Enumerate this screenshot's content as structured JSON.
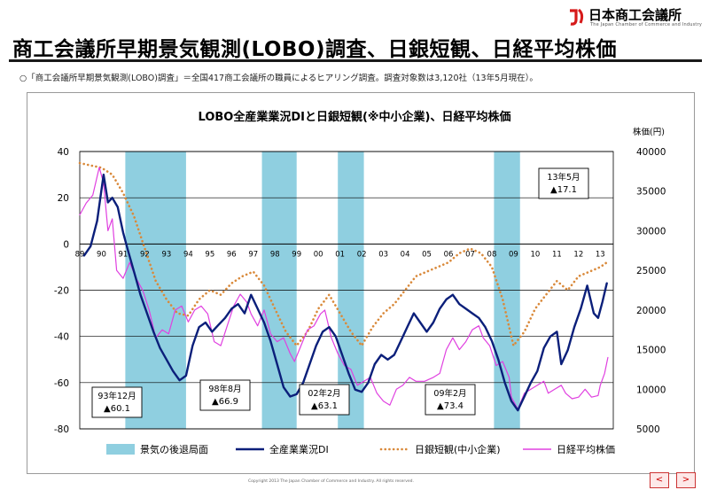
{
  "org": {
    "name": "日本商工会議所",
    "subtitle": "The Japan Chamber of Commerce and Industry"
  },
  "page_title": "商工会議所早期景気観測(LOBO)調査、日銀短観、日経平均株価",
  "note": "○「商工会議所早期景気観測(LOBO)調査」＝全国417商工会議所の職員によるヒアリング調査。調査対象数は3,120社（13年5月現在）。",
  "copyright": "Copyright 2013 The Japan Chamber of Commerce and Industry. All rights reserved.",
  "nav": {
    "prev": "<",
    "next": ">"
  },
  "colors": {
    "recession": "#8fcfe0",
    "lobo": "#0b1f7a",
    "tankan": "#d9893a",
    "nikkei": "#e040e0"
  },
  "chart_data": {
    "type": "line",
    "title": "LOBO全産業業況DIと日銀短観(※中小企業)、日経平均株価",
    "xlabel": "",
    "ylabel": "",
    "y2label": "株価(円)",
    "x_ticks": [
      "89",
      "90",
      "91",
      "92",
      "93",
      "94",
      "95",
      "96",
      "97",
      "98",
      "99",
      "00",
      "01",
      "02",
      "03",
      "04",
      "05",
      "06",
      "07",
      "08",
      "09",
      "10",
      "11",
      "12",
      "13"
    ],
    "ylim": [
      -80,
      40
    ],
    "y_ticks": [
      40,
      20,
      0,
      -20,
      -40,
      -60,
      -80
    ],
    "y2lim": [
      5000,
      40000
    ],
    "y2_ticks": [
      40000,
      35000,
      30000,
      25000,
      20000,
      15000,
      10000,
      5000
    ],
    "recessions": [
      [
        1991.1,
        1993.9
      ],
      [
        1997.4,
        1999.0
      ],
      [
        2000.9,
        2002.1
      ],
      [
        2008.1,
        2009.3
      ]
    ],
    "series": [
      {
        "name": "全産業業況DI",
        "axis": "left",
        "points": [
          [
            1989.2,
            -5
          ],
          [
            1989.5,
            -1
          ],
          [
            1989.8,
            10
          ],
          [
            1990.1,
            30
          ],
          [
            1990.3,
            18
          ],
          [
            1990.5,
            20
          ],
          [
            1990.75,
            16
          ],
          [
            1991.0,
            5
          ],
          [
            1991.2,
            -2
          ],
          [
            1991.5,
            -12
          ],
          [
            1991.8,
            -22
          ],
          [
            1992.1,
            -30
          ],
          [
            1992.4,
            -38
          ],
          [
            1992.7,
            -45
          ],
          [
            1993.0,
            -50
          ],
          [
            1993.3,
            -55
          ],
          [
            1993.6,
            -59
          ],
          [
            1993.9,
            -57
          ],
          [
            1994.2,
            -44
          ],
          [
            1994.5,
            -36
          ],
          [
            1994.8,
            -34
          ],
          [
            1995.1,
            -38
          ],
          [
            1995.4,
            -35
          ],
          [
            1995.7,
            -32
          ],
          [
            1996.0,
            -28
          ],
          [
            1996.3,
            -26
          ],
          [
            1996.6,
            -30
          ],
          [
            1996.9,
            -22
          ],
          [
            1997.2,
            -28
          ],
          [
            1997.5,
            -34
          ],
          [
            1997.8,
            -42
          ],
          [
            1998.1,
            -52
          ],
          [
            1998.4,
            -62
          ],
          [
            1998.7,
            -66
          ],
          [
            1999.0,
            -65
          ],
          [
            1999.3,
            -60
          ],
          [
            1999.6,
            -52
          ],
          [
            1999.9,
            -44
          ],
          [
            2000.2,
            -38
          ],
          [
            2000.5,
            -36
          ],
          [
            2000.8,
            -40
          ],
          [
            2001.1,
            -48
          ],
          [
            2001.4,
            -56
          ],
          [
            2001.7,
            -63
          ],
          [
            2002.0,
            -64
          ],
          [
            2002.3,
            -60
          ],
          [
            2002.6,
            -52
          ],
          [
            2002.9,
            -48
          ],
          [
            2003.2,
            -50
          ],
          [
            2003.5,
            -48
          ],
          [
            2003.8,
            -42
          ],
          [
            2004.1,
            -36
          ],
          [
            2004.4,
            -30
          ],
          [
            2004.7,
            -34
          ],
          [
            2005.0,
            -38
          ],
          [
            2005.3,
            -34
          ],
          [
            2005.6,
            -28
          ],
          [
            2005.9,
            -24
          ],
          [
            2006.2,
            -22
          ],
          [
            2006.5,
            -26
          ],
          [
            2006.8,
            -28
          ],
          [
            2007.1,
            -30
          ],
          [
            2007.4,
            -32
          ],
          [
            2007.7,
            -36
          ],
          [
            2008.0,
            -42
          ],
          [
            2008.3,
            -50
          ],
          [
            2008.6,
            -60
          ],
          [
            2008.9,
            -68
          ],
          [
            2009.2,
            -72
          ],
          [
            2009.5,
            -66
          ],
          [
            2009.8,
            -60
          ],
          [
            2010.1,
            -55
          ],
          [
            2010.4,
            -45
          ],
          [
            2010.7,
            -40
          ],
          [
            2011.0,
            -38
          ],
          [
            2011.2,
            -52
          ],
          [
            2011.5,
            -46
          ],
          [
            2011.8,
            -36
          ],
          [
            2012.1,
            -28
          ],
          [
            2012.4,
            -18
          ],
          [
            2012.7,
            -30
          ],
          [
            2012.9,
            -32
          ],
          [
            2013.1,
            -25
          ],
          [
            2013.3,
            -17
          ]
        ]
      },
      {
        "name": "日銀短観(中小企業)",
        "axis": "left",
        "points": [
          [
            1989.0,
            35
          ],
          [
            1989.5,
            34
          ],
          [
            1990.0,
            33
          ],
          [
            1990.5,
            30
          ],
          [
            1991.0,
            22
          ],
          [
            1991.5,
            12
          ],
          [
            1992.0,
            -2
          ],
          [
            1992.5,
            -16
          ],
          [
            1993.0,
            -24
          ],
          [
            1993.5,
            -30
          ],
          [
            1994.0,
            -31
          ],
          [
            1994.5,
            -24
          ],
          [
            1995.0,
            -20
          ],
          [
            1995.5,
            -22
          ],
          [
            1996.0,
            -17
          ],
          [
            1996.5,
            -14
          ],
          [
            1997.0,
            -12
          ],
          [
            1997.5,
            -18
          ],
          [
            1998.0,
            -28
          ],
          [
            1998.5,
            -38
          ],
          [
            1999.0,
            -44
          ],
          [
            1999.5,
            -38
          ],
          [
            2000.0,
            -28
          ],
          [
            2000.5,
            -22
          ],
          [
            2001.0,
            -30
          ],
          [
            2001.5,
            -38
          ],
          [
            2002.0,
            -44
          ],
          [
            2002.5,
            -36
          ],
          [
            2003.0,
            -30
          ],
          [
            2003.5,
            -26
          ],
          [
            2004.0,
            -20
          ],
          [
            2004.5,
            -14
          ],
          [
            2005.0,
            -12
          ],
          [
            2005.5,
            -10
          ],
          [
            2006.0,
            -8
          ],
          [
            2006.5,
            -4
          ],
          [
            2007.0,
            -2
          ],
          [
            2007.5,
            -4
          ],
          [
            2008.0,
            -10
          ],
          [
            2008.5,
            -24
          ],
          [
            2009.0,
            -44
          ],
          [
            2009.5,
            -38
          ],
          [
            2010.0,
            -28
          ],
          [
            2010.5,
            -22
          ],
          [
            2011.0,
            -16
          ],
          [
            2011.5,
            -20
          ],
          [
            2012.0,
            -14
          ],
          [
            2012.5,
            -12
          ],
          [
            2013.0,
            -10
          ],
          [
            2013.3,
            -8
          ]
        ]
      },
      {
        "name": "日経平均株価",
        "axis": "right",
        "points": [
          [
            1989.0,
            32000
          ],
          [
            1989.3,
            33500
          ],
          [
            1989.6,
            34500
          ],
          [
            1989.9,
            38000
          ],
          [
            1990.1,
            36000
          ],
          [
            1990.3,
            30000
          ],
          [
            1990.5,
            31500
          ],
          [
            1990.7,
            25000
          ],
          [
            1991.0,
            24000
          ],
          [
            1991.3,
            26000
          ],
          [
            1991.6,
            24000
          ],
          [
            1991.9,
            22500
          ],
          [
            1992.2,
            20000
          ],
          [
            1992.5,
            16500
          ],
          [
            1992.8,
            17500
          ],
          [
            1993.1,
            17000
          ],
          [
            1993.4,
            20000
          ],
          [
            1993.7,
            20500
          ],
          [
            1994.0,
            18500
          ],
          [
            1994.3,
            20000
          ],
          [
            1994.6,
            20500
          ],
          [
            1994.9,
            19500
          ],
          [
            1995.2,
            16000
          ],
          [
            1995.5,
            15500
          ],
          [
            1995.8,
            18000
          ],
          [
            1996.1,
            20500
          ],
          [
            1996.4,
            22000
          ],
          [
            1996.7,
            21000
          ],
          [
            1996.9,
            19500
          ],
          [
            1997.2,
            18000
          ],
          [
            1997.5,
            20000
          ],
          [
            1997.8,
            17000
          ],
          [
            1998.1,
            16000
          ],
          [
            1998.4,
            16500
          ],
          [
            1998.7,
            14500
          ],
          [
            1998.9,
            13500
          ],
          [
            1999.2,
            15500
          ],
          [
            1999.5,
            17500
          ],
          [
            1999.8,
            18000
          ],
          [
            2000.1,
            19500
          ],
          [
            2000.3,
            20000
          ],
          [
            2000.6,
            16500
          ],
          [
            2000.9,
            14500
          ],
          [
            2001.2,
            13000
          ],
          [
            2001.5,
            12500
          ],
          [
            2001.8,
            10500
          ],
          [
            2002.1,
            11000
          ],
          [
            2002.4,
            11500
          ],
          [
            2002.7,
            9500
          ],
          [
            2003.0,
            8500
          ],
          [
            2003.3,
            8000
          ],
          [
            2003.6,
            10000
          ],
          [
            2003.9,
            10500
          ],
          [
            2004.2,
            11500
          ],
          [
            2004.5,
            11000
          ],
          [
            2004.9,
            11000
          ],
          [
            2005.3,
            11500
          ],
          [
            2005.6,
            12000
          ],
          [
            2005.9,
            15000
          ],
          [
            2006.2,
            16500
          ],
          [
            2006.5,
            15000
          ],
          [
            2006.8,
            16000
          ],
          [
            2007.1,
            17500
          ],
          [
            2007.4,
            18000
          ],
          [
            2007.6,
            16500
          ],
          [
            2007.9,
            15500
          ],
          [
            2008.2,
            13000
          ],
          [
            2008.5,
            13500
          ],
          [
            2008.8,
            11500
          ],
          [
            2008.9,
            9000
          ],
          [
            2009.2,
            7500
          ],
          [
            2009.5,
            9500
          ],
          [
            2009.8,
            10000
          ],
          [
            2010.1,
            10500
          ],
          [
            2010.4,
            11000
          ],
          [
            2010.6,
            9500
          ],
          [
            2010.9,
            10000
          ],
          [
            2011.2,
            10500
          ],
          [
            2011.4,
            9500
          ],
          [
            2011.7,
            8800
          ],
          [
            2012.0,
            9000
          ],
          [
            2012.3,
            10000
          ],
          [
            2012.6,
            9000
          ],
          [
            2012.9,
            9200
          ],
          [
            2013.0,
            10500
          ],
          [
            2013.2,
            12000
          ],
          [
            2013.35,
            14000
          ]
        ]
      }
    ],
    "annotations": [
      {
        "label": "93年12月",
        "value": "▲60.1",
        "x": 1993.95,
        "y": -60.1
      },
      {
        "label": "98年8月",
        "value": "▲66.9",
        "x": 1998.62,
        "y": -66.9
      },
      {
        "label": "02年2月",
        "value": "▲63.1",
        "x": 2002.12,
        "y": -63.1
      },
      {
        "label": "09年2月",
        "value": "▲73.4",
        "x": 2009.12,
        "y": -73.4
      },
      {
        "label": "13年5月",
        "value": "▲17.1",
        "x": 2013.37,
        "y": -17.1
      }
    ],
    "legend": [
      {
        "label": "景気の後退局面",
        "kind": "box",
        "color": "#8fcfe0"
      },
      {
        "label": "全産業業況DI",
        "kind": "line",
        "color": "#0b1f7a"
      },
      {
        "label": "日銀短観(中小企業)",
        "kind": "dot",
        "color": "#d9893a"
      },
      {
        "label": "日経平均株価",
        "kind": "line",
        "color": "#e040e0"
      }
    ],
    "grid": "horizontal",
    "legend_position": "bottom"
  }
}
